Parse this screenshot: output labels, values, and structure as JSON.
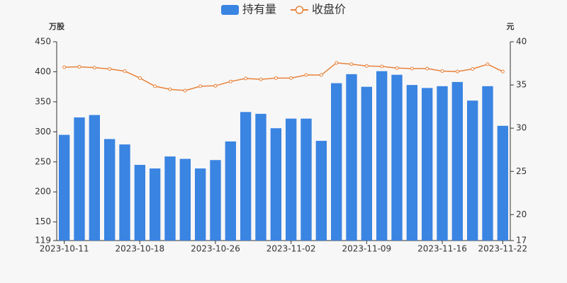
{
  "chart_data": {
    "type": "bar_line",
    "categories": [
      "2023-10-11",
      null,
      null,
      null,
      null,
      "2023-10-18",
      null,
      null,
      null,
      null,
      "2023-10-26",
      null,
      null,
      null,
      null,
      "2023-11-02",
      null,
      null,
      null,
      null,
      "2023-11-09",
      null,
      null,
      null,
      null,
      "2023-11-16",
      null,
      null,
      null,
      "2023-11-22"
    ],
    "y_label": "万股",
    "y2_label": "元",
    "ylim": [
      119,
      450
    ],
    "yticks": [
      119,
      150,
      200,
      250,
      300,
      350,
      400,
      450
    ],
    "y2lim": [
      17,
      40
    ],
    "y2ticks": [
      17,
      20,
      25,
      30,
      35,
      40
    ],
    "grid": false,
    "legend": "top",
    "series": [
      {
        "name": "持有量",
        "type": "bar",
        "color": "#3a84e2",
        "values": [
          295,
          324,
          328,
          288,
          279,
          245,
          239,
          259,
          255,
          239,
          253,
          284,
          333,
          330,
          306,
          322,
          322,
          285,
          381,
          396,
          375,
          401,
          395,
          378,
          373,
          376,
          383,
          352,
          376,
          310
        ]
      },
      {
        "name": "收盘价",
        "type": "line",
        "axis": "y2",
        "color": "#e8823a",
        "values": [
          37.05,
          37.1,
          37.0,
          36.85,
          36.6,
          35.8,
          34.85,
          34.5,
          34.35,
          34.85,
          34.9,
          35.4,
          35.75,
          35.65,
          35.8,
          35.8,
          36.15,
          36.15,
          37.55,
          37.4,
          37.2,
          37.15,
          36.95,
          36.9,
          36.9,
          36.6,
          36.55,
          36.85,
          37.4,
          36.55
        ]
      }
    ]
  }
}
